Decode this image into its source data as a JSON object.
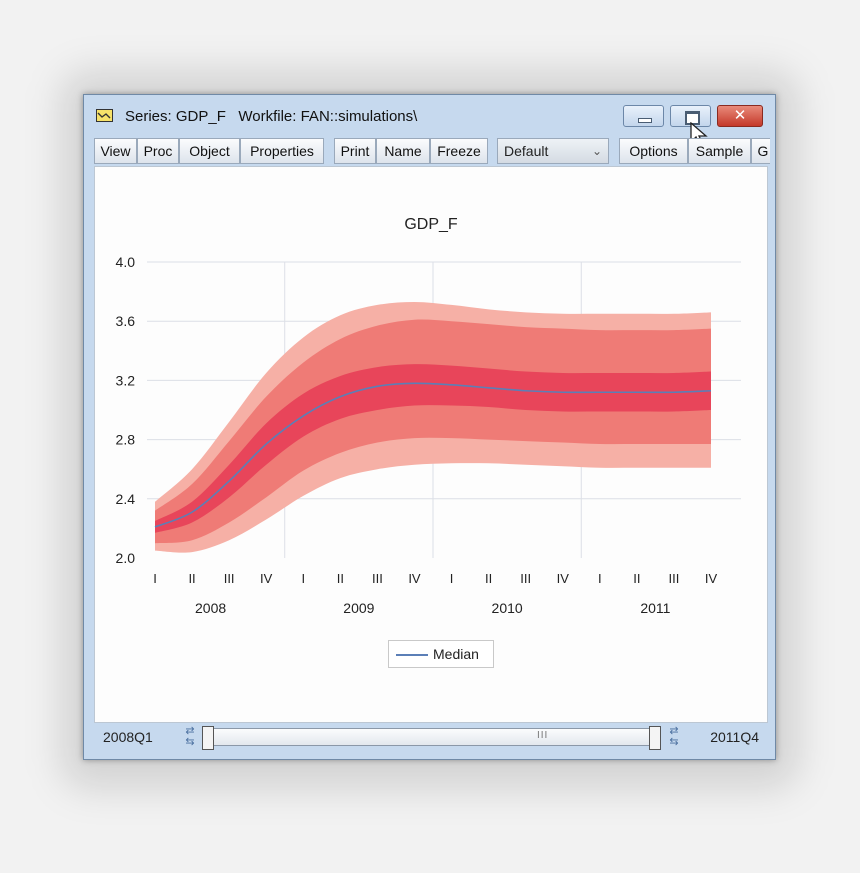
{
  "window": {
    "title": "Series: GDP_F   Workfile: FAN::simulations\\",
    "minimize_glyph": "",
    "maximize_glyph": "",
    "close_glyph": "✕"
  },
  "toolbar": {
    "buttons": [
      "View",
      "Proc",
      "Object",
      "Properties",
      "Print",
      "Name",
      "Freeze",
      "Options",
      "Sample",
      "G"
    ],
    "dropdown_value": "Default"
  },
  "chart_data": {
    "type": "area",
    "title": "GDP_F",
    "x_periods": [
      "2008Q1",
      "2008Q2",
      "2008Q3",
      "2008Q4",
      "2009Q1",
      "2009Q2",
      "2009Q3",
      "2009Q4",
      "2010Q1",
      "2010Q2",
      "2010Q3",
      "2010Q4",
      "2011Q1",
      "2011Q2",
      "2011Q3",
      "2011Q4"
    ],
    "quarter_tick_labels": [
      "I",
      "II",
      "III",
      "IV",
      "I",
      "II",
      "III",
      "IV",
      "I",
      "II",
      "III",
      "IV",
      "I",
      "II",
      "III",
      "IV"
    ],
    "year_labels": [
      "2008",
      "2009",
      "2010",
      "2011"
    ],
    "y_ticks": [
      "2.0",
      "2.4",
      "2.8",
      "3.2",
      "3.6",
      "4.0"
    ],
    "ylim": [
      2.0,
      4.0
    ],
    "grid": true,
    "legend_position": "bottom-center",
    "series": [
      {
        "name": "Median",
        "values": [
          2.21,
          2.31,
          2.52,
          2.77,
          2.96,
          3.09,
          3.16,
          3.18,
          3.17,
          3.15,
          3.13,
          3.12,
          3.12,
          3.12,
          3.12,
          3.13
        ]
      }
    ],
    "fan_bands": [
      {
        "lower": [
          2.05,
          2.04,
          2.12,
          2.26,
          2.42,
          2.54,
          2.6,
          2.63,
          2.64,
          2.64,
          2.63,
          2.62,
          2.61,
          2.61,
          2.61,
          2.61
        ],
        "upper": [
          2.38,
          2.6,
          2.92,
          3.25,
          3.49,
          3.64,
          3.71,
          3.73,
          3.71,
          3.68,
          3.66,
          3.65,
          3.65,
          3.65,
          3.65,
          3.66
        ]
      },
      {
        "lower": [
          2.1,
          2.12,
          2.24,
          2.41,
          2.59,
          2.71,
          2.78,
          2.81,
          2.81,
          2.8,
          2.79,
          2.78,
          2.77,
          2.77,
          2.77,
          2.77
        ],
        "upper": [
          2.32,
          2.5,
          2.79,
          3.09,
          3.32,
          3.48,
          3.57,
          3.61,
          3.6,
          3.58,
          3.56,
          3.55,
          3.54,
          3.54,
          3.54,
          3.55
        ]
      },
      {
        "lower": [
          2.17,
          2.24,
          2.41,
          2.63,
          2.82,
          2.94,
          3.0,
          3.03,
          3.03,
          3.02,
          3.0,
          2.99,
          2.99,
          2.99,
          2.99,
          3.0
        ],
        "upper": [
          2.25,
          2.38,
          2.63,
          2.91,
          3.11,
          3.23,
          3.29,
          3.31,
          3.3,
          3.28,
          3.26,
          3.25,
          3.25,
          3.25,
          3.25,
          3.26
        ]
      }
    ],
    "colors": {
      "outer": "#f6b0a6",
      "middle": "#ef7b76",
      "inner": "#e8455a",
      "median": "#5b7fb7",
      "grid": "#dcdfe6"
    }
  },
  "bottom": {
    "range_start": "2008Q1",
    "range_end": "2011Q4",
    "grip": "III"
  }
}
